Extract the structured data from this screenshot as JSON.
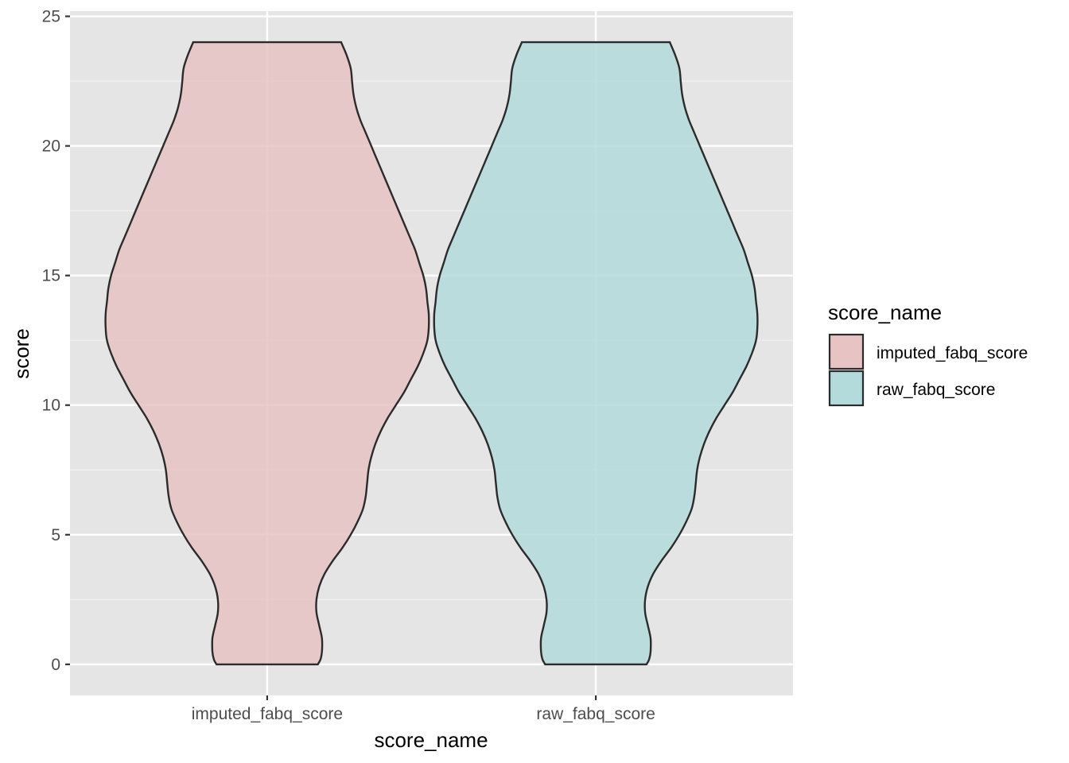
{
  "chart_data": {
    "type": "violin",
    "xlabel": "score_name",
    "ylabel": "score",
    "categories": [
      "imputed_fabq_score",
      "raw_fabq_score"
    ],
    "ylim": [
      -1.2,
      25.2
    ],
    "yticks": [
      0,
      5,
      10,
      15,
      20,
      25
    ],
    "grid": true,
    "legend": {
      "title": "score_name",
      "placement": "right",
      "entries": [
        {
          "label": "imputed_fabq_score",
          "color": "#e8c3c3"
        },
        {
          "label": "raw_fabq_score",
          "color": "#b3dbdc"
        }
      ]
    },
    "series": [
      {
        "name": "imputed_fabq_score",
        "color": "#e8c3c3",
        "y_min": 0,
        "y_max": 24,
        "density_profile": {
          "y": [
            0,
            0.2,
            0.5,
            1,
            1.5,
            2,
            2.5,
            3,
            3.5,
            4,
            4.5,
            5,
            5.5,
            6,
            6.5,
            7,
            7.5,
            8,
            8.5,
            9,
            9.5,
            10,
            10.5,
            11,
            11.5,
            12,
            12.5,
            13,
            13.5,
            14,
            14.5,
            15,
            15.5,
            16,
            16.5,
            17,
            17.5,
            18,
            18.5,
            19,
            19.5,
            20,
            20.5,
            21,
            21.5,
            22,
            22.5,
            23,
            23.5,
            24
          ],
          "half_width": [
            0.37,
            0.39,
            0.4,
            0.4,
            0.38,
            0.36,
            0.36,
            0.38,
            0.42,
            0.48,
            0.55,
            0.61,
            0.66,
            0.7,
            0.72,
            0.73,
            0.74,
            0.76,
            0.79,
            0.83,
            0.88,
            0.94,
            1.0,
            1.05,
            1.1,
            1.14,
            1.17,
            1.18,
            1.18,
            1.17,
            1.16,
            1.14,
            1.11,
            1.08,
            1.04,
            1.0,
            0.96,
            0.92,
            0.88,
            0.84,
            0.8,
            0.76,
            0.72,
            0.68,
            0.65,
            0.63,
            0.62,
            0.61,
            0.58,
            0.54
          ]
        }
      },
      {
        "name": "raw_fabq_score",
        "color": "#b3dbdc",
        "y_min": 0,
        "y_max": 24,
        "density_profile": {
          "y": [
            0,
            0.2,
            0.5,
            1,
            1.5,
            2,
            2.5,
            3,
            3.5,
            4,
            4.5,
            5,
            5.5,
            6,
            6.5,
            7,
            7.5,
            8,
            8.5,
            9,
            9.5,
            10,
            10.5,
            11,
            11.5,
            12,
            12.5,
            13,
            13.5,
            14,
            14.5,
            15,
            15.5,
            16,
            16.5,
            17,
            17.5,
            18,
            18.5,
            19,
            19.5,
            20,
            20.5,
            21,
            21.5,
            22,
            22.5,
            23,
            23.5,
            24
          ],
          "half_width": [
            0.37,
            0.39,
            0.4,
            0.4,
            0.38,
            0.36,
            0.36,
            0.38,
            0.42,
            0.48,
            0.55,
            0.61,
            0.66,
            0.7,
            0.72,
            0.73,
            0.74,
            0.76,
            0.79,
            0.83,
            0.88,
            0.94,
            1.0,
            1.05,
            1.1,
            1.14,
            1.17,
            1.18,
            1.18,
            1.17,
            1.16,
            1.14,
            1.11,
            1.08,
            1.04,
            1.0,
            0.96,
            0.92,
            0.88,
            0.84,
            0.8,
            0.76,
            0.72,
            0.68,
            0.65,
            0.63,
            0.62,
            0.61,
            0.58,
            0.54
          ]
        }
      }
    ]
  }
}
